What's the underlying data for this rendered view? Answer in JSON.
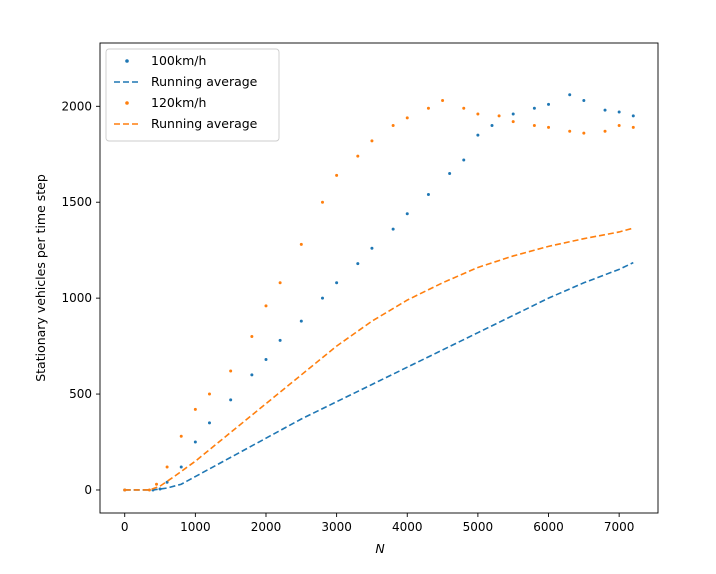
{
  "chart_data": {
    "type": "scatter",
    "xlabel": "N",
    "ylabel": "Stationary vehicles per time step",
    "xlim": [
      -350,
      7550
    ],
    "ylim": [
      -120,
      2330
    ],
    "xticks": [
      0,
      1000,
      2000,
      3000,
      4000,
      5000,
      6000,
      7000
    ],
    "yticks": [
      0,
      500,
      1000,
      1500,
      2000
    ],
    "grid": false,
    "legend_position": "upper-left",
    "series": [
      {
        "name": "100km/h",
        "kind": "scatter",
        "color": "#1f77b4",
        "points": [
          [
            0,
            0
          ],
          [
            400,
            0
          ],
          [
            500,
            5
          ],
          [
            600,
            40
          ],
          [
            800,
            120
          ],
          [
            1000,
            250
          ],
          [
            1200,
            350
          ],
          [
            1500,
            470
          ],
          [
            1800,
            600
          ],
          [
            2000,
            680
          ],
          [
            2200,
            780
          ],
          [
            2500,
            880
          ],
          [
            2800,
            1000
          ],
          [
            3000,
            1080
          ],
          [
            3300,
            1180
          ],
          [
            3500,
            1260
          ],
          [
            3800,
            1360
          ],
          [
            4000,
            1440
          ],
          [
            4300,
            1540
          ],
          [
            4600,
            1650
          ],
          [
            4800,
            1720
          ],
          [
            5000,
            1850
          ],
          [
            5200,
            1900
          ],
          [
            5500,
            1960
          ],
          [
            5800,
            1990
          ],
          [
            6000,
            2010
          ],
          [
            6300,
            2060
          ],
          [
            6500,
            2030
          ],
          [
            6800,
            1980
          ],
          [
            7000,
            1970
          ],
          [
            7200,
            1950
          ]
        ]
      },
      {
        "name": "Running average",
        "kind": "line",
        "color": "#1f77b4",
        "points": [
          [
            0,
            0
          ],
          [
            400,
            0
          ],
          [
            600,
            10
          ],
          [
            800,
            30
          ],
          [
            1000,
            70
          ],
          [
            1500,
            170
          ],
          [
            2000,
            270
          ],
          [
            2500,
            370
          ],
          [
            3000,
            460
          ],
          [
            3500,
            550
          ],
          [
            4000,
            640
          ],
          [
            4500,
            730
          ],
          [
            5000,
            820
          ],
          [
            5500,
            910
          ],
          [
            6000,
            1000
          ],
          [
            6500,
            1080
          ],
          [
            7000,
            1150
          ],
          [
            7200,
            1185
          ]
        ]
      },
      {
        "name": "120km/h",
        "kind": "scatter",
        "color": "#ff7f0e",
        "points": [
          [
            0,
            0
          ],
          [
            350,
            0
          ],
          [
            450,
            30
          ],
          [
            600,
            120
          ],
          [
            800,
            280
          ],
          [
            1000,
            420
          ],
          [
            1200,
            500
          ],
          [
            1500,
            620
          ],
          [
            1800,
            800
          ],
          [
            2000,
            960
          ],
          [
            2200,
            1080
          ],
          [
            2500,
            1280
          ],
          [
            2800,
            1500
          ],
          [
            3000,
            1640
          ],
          [
            3300,
            1740
          ],
          [
            3500,
            1820
          ],
          [
            3800,
            1900
          ],
          [
            4000,
            1940
          ],
          [
            4300,
            1990
          ],
          [
            4500,
            2030
          ],
          [
            4800,
            1990
          ],
          [
            5000,
            1960
          ],
          [
            5300,
            1950
          ],
          [
            5500,
            1920
          ],
          [
            5800,
            1900
          ],
          [
            6000,
            1890
          ],
          [
            6300,
            1870
          ],
          [
            6500,
            1860
          ],
          [
            6800,
            1870
          ],
          [
            7000,
            1900
          ],
          [
            7200,
            1890
          ]
        ]
      },
      {
        "name": "Running average",
        "kind": "line",
        "color": "#ff7f0e",
        "points": [
          [
            0,
            0
          ],
          [
            350,
            0
          ],
          [
            500,
            20
          ],
          [
            700,
            70
          ],
          [
            1000,
            150
          ],
          [
            1500,
            300
          ],
          [
            2000,
            450
          ],
          [
            2500,
            600
          ],
          [
            3000,
            750
          ],
          [
            3500,
            880
          ],
          [
            4000,
            990
          ],
          [
            4500,
            1080
          ],
          [
            5000,
            1160
          ],
          [
            5500,
            1220
          ],
          [
            6000,
            1270
          ],
          [
            6500,
            1310
          ],
          [
            7000,
            1345
          ],
          [
            7200,
            1365
          ]
        ]
      }
    ]
  }
}
